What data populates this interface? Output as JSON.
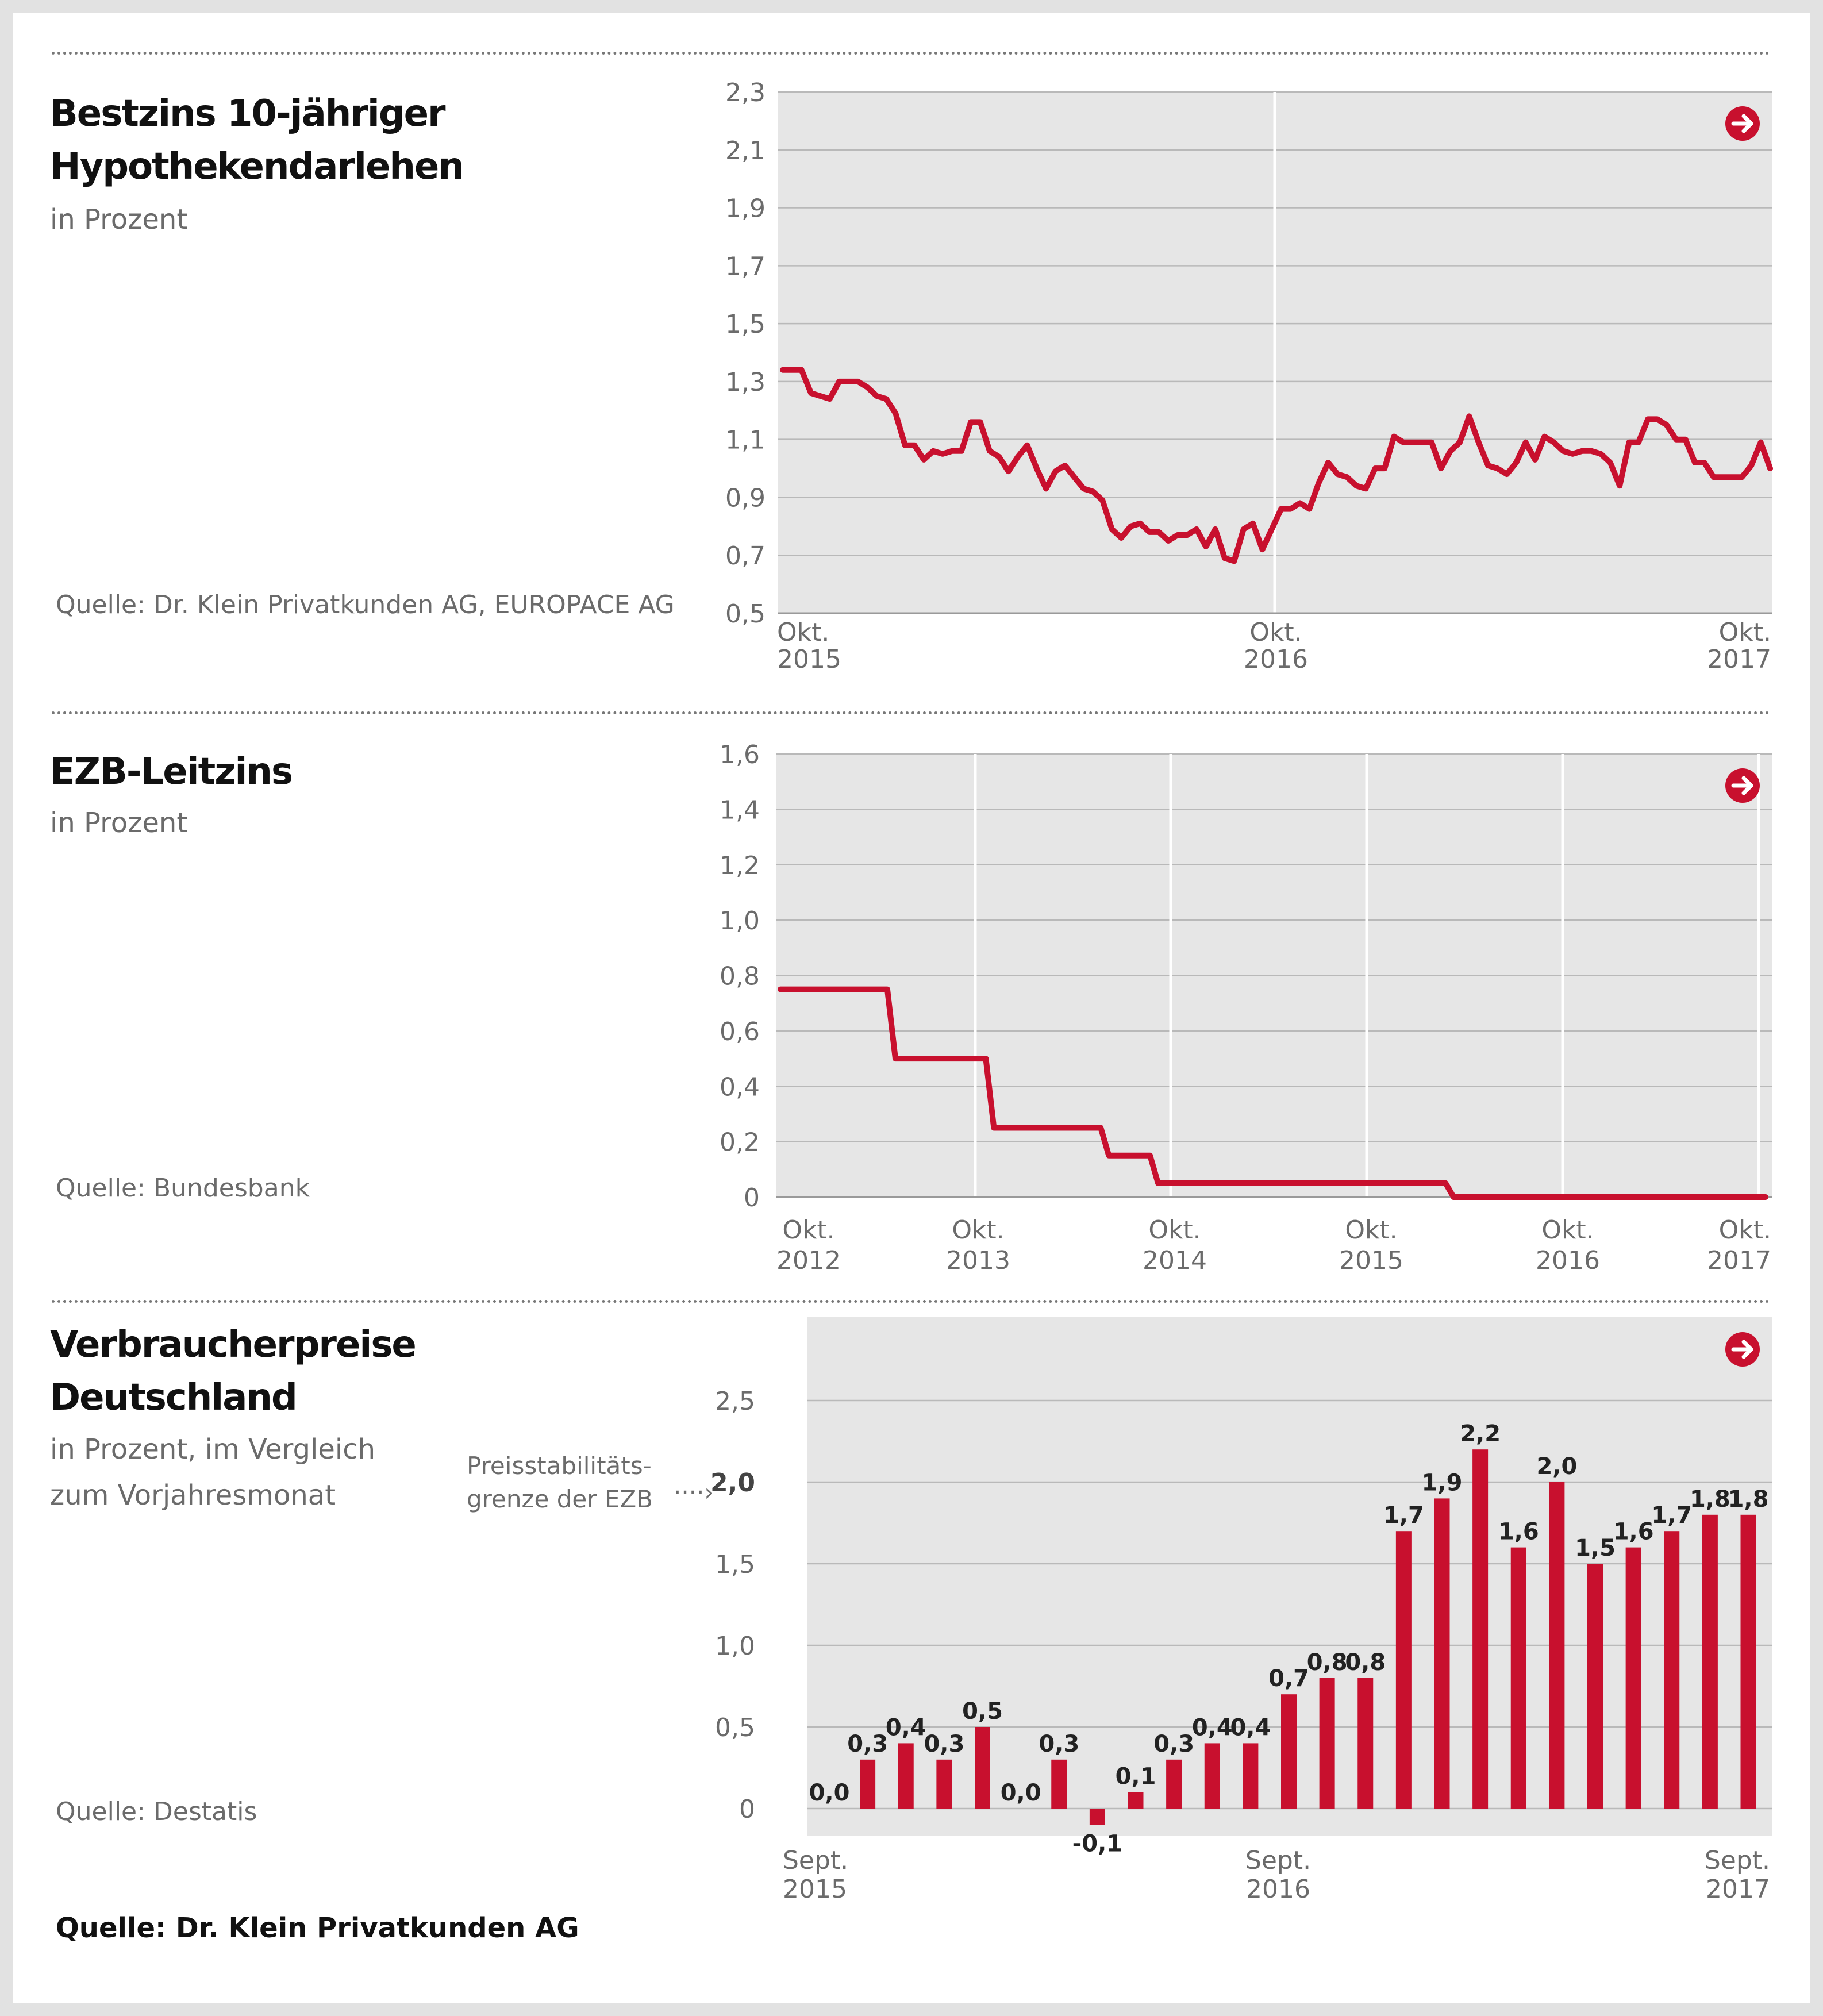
{
  "charts": [
    {
      "title_line1": "Bestzins 10-jähriger",
      "title_line2": "Hypothekendarlehen",
      "subtitle": "in Prozent",
      "source": "Quelle: Dr. Klein Privatkunden AG, EUROPACE AG",
      "chart_data": {
        "type": "line",
        "title": "Bestzins 10-jähriger Hypothekendarlehen",
        "subtitle": "in Prozent",
        "ylim": [
          0.5,
          2.3
        ],
        "yticks": [
          "2,3",
          "2,1",
          "1,9",
          "1,7",
          "1,5",
          "1,3",
          "1,1",
          "0,9",
          "0,7",
          "0,5"
        ],
        "ytick_values": [
          2.3,
          2.1,
          1.9,
          1.7,
          1.5,
          1.3,
          1.1,
          0.9,
          0.7,
          0.5
        ],
        "xticks": [
          {
            "top": "Okt.",
            "bottom": "2015"
          },
          {
            "top": "Okt.",
            "bottom": "2016"
          },
          {
            "top": "Okt.",
            "bottom": "2017"
          }
        ],
        "x_start": "2015-10",
        "x_end": "2017-10",
        "values": [
          1.34,
          1.34,
          1.34,
          1.26,
          1.25,
          1.24,
          1.3,
          1.3,
          1.3,
          1.28,
          1.25,
          1.24,
          1.19,
          1.08,
          1.08,
          1.03,
          1.06,
          1.05,
          1.06,
          1.06,
          1.16,
          1.16,
          1.06,
          1.04,
          0.99,
          1.04,
          1.08,
          1.0,
          0.93,
          0.99,
          1.01,
          0.97,
          0.93,
          0.92,
          0.89,
          0.79,
          0.76,
          0.8,
          0.81,
          0.78,
          0.78,
          0.75,
          0.77,
          0.77,
          0.79,
          0.73,
          0.79,
          0.69,
          0.68,
          0.79,
          0.81,
          0.72,
          0.79,
          0.86,
          0.86,
          0.88,
          0.86,
          0.95,
          1.02,
          0.98,
          0.97,
          0.94,
          0.93,
          1.0,
          1.0,
          1.11,
          1.09,
          1.09,
          1.09,
          1.09,
          1.0,
          1.06,
          1.09,
          1.18,
          1.09,
          1.01,
          1.0,
          0.98,
          1.02,
          1.09,
          1.03,
          1.11,
          1.09,
          1.06,
          1.05,
          1.06,
          1.06,
          1.05,
          1.02,
          0.94,
          1.09,
          1.09,
          1.17,
          1.17,
          1.15,
          1.1,
          1.1,
          1.02,
          1.02,
          0.97,
          0.97,
          0.97,
          0.97,
          1.01,
          1.09,
          1.0
        ],
        "color": "#c8102e"
      }
    },
    {
      "title_line1": "EZB-Leitzins",
      "subtitle": "in Prozent",
      "source": "Quelle: Bundesbank",
      "chart_data": {
        "type": "line",
        "title": "EZB-Leitzins",
        "subtitle": "in Prozent",
        "ylim": [
          0,
          1.6
        ],
        "yticks": [
          "1,6",
          "1,4",
          "1,2",
          "1,0",
          "0,8",
          "0,6",
          "0,4",
          "0,2",
          "0"
        ],
        "ytick_values": [
          1.6,
          1.4,
          1.2,
          1.0,
          0.8,
          0.6,
          0.4,
          0.2,
          0
        ],
        "xticks": [
          {
            "top": "Okt.",
            "bottom": "2012"
          },
          {
            "top": "Okt.",
            "bottom": "2013"
          },
          {
            "top": "Okt.",
            "bottom": "2014"
          },
          {
            "top": "Okt.",
            "bottom": "2015"
          },
          {
            "top": "Okt.",
            "bottom": "2016"
          },
          {
            "top": "Okt.",
            "bottom": "2017"
          }
        ],
        "x_start": "2012-10",
        "x_end": "2017-10",
        "steps": [
          {
            "date": "2012-10",
            "value": 0.75
          },
          {
            "date": "2013-05",
            "value": 0.5
          },
          {
            "date": "2013-11",
            "value": 0.25
          },
          {
            "date": "2014-06",
            "value": 0.15
          },
          {
            "date": "2014-09",
            "value": 0.05
          },
          {
            "date": "2016-03",
            "value": 0
          },
          {
            "date": "2017-10",
            "value": 0
          }
        ],
        "color": "#c8102e"
      }
    },
    {
      "title_line1": "Verbraucherpreise",
      "title_line2": "Deutschland",
      "subtitle_line1": "in Prozent, im Vergleich",
      "subtitle_line2": "zum Vorjahresmonat",
      "source": "Quelle: Destatis",
      "note_line1": "Preisstabilitäts-",
      "note_line2": "grenze der EZB",
      "note_arrow": "····›",
      "chart_data": {
        "type": "bar",
        "title": "Verbraucherpreise Deutschland",
        "subtitle": "in Prozent, im Vergleich zum Vorjahresmonat",
        "ylim": [
          -0.1,
          2.9
        ],
        "yticks": [
          "2,5",
          "2,0",
          "1,5",
          "1,0",
          "0,5",
          "0"
        ],
        "ytick_values": [
          2.5,
          2.0,
          1.5,
          1.0,
          0.5,
          0
        ],
        "bold_tick": "2,0",
        "xticks": [
          {
            "top": "Sept.",
            "bottom": "2015"
          },
          {
            "top": "Sept.",
            "bottom": "2016"
          },
          {
            "top": "Sept.",
            "bottom": "2017"
          }
        ],
        "categories": [
          "2015-09",
          "2015-10",
          "2015-11",
          "2015-12",
          "2016-01",
          "2016-02",
          "2016-03",
          "2016-04",
          "2016-05",
          "2016-06",
          "2016-07",
          "2016-08",
          "2016-09",
          "2016-10",
          "2016-11",
          "2016-12",
          "2017-01",
          "2017-02",
          "2017-03",
          "2017-04",
          "2017-05",
          "2017-06",
          "2017-07",
          "2017-08",
          "2017-09"
        ],
        "values": [
          0.0,
          0.3,
          0.4,
          0.3,
          0.5,
          0.0,
          0.3,
          -0.1,
          0.1,
          0.3,
          0.4,
          0.4,
          0.7,
          0.8,
          0.8,
          1.7,
          1.9,
          2.2,
          1.6,
          2.0,
          1.5,
          1.6,
          1.7,
          1.8,
          1.8
        ],
        "labels": [
          "0,0",
          "0,3",
          "0,4",
          "0,3",
          "0,5",
          "0,0",
          "0,3",
          "-0,1",
          "0,1",
          "0,3",
          "0,4",
          "0,4",
          "0,7",
          "0,8",
          "0,8",
          "1,7",
          "1,9",
          "2,2",
          "1,6",
          "2,0",
          "1,5",
          "1,6",
          "1,7",
          "1,8",
          "1,8"
        ],
        "color": "#c8102e"
      }
    }
  ],
  "footer_source": "Quelle: Dr. Klein Privatkunden AG",
  "colors": {
    "accent": "#c8102e",
    "plot_bg": "#e6e6e6",
    "grid": "#b9b9b9",
    "text_grey": "#6b6b6b"
  },
  "icons": [
    "arrow-right-circle-icon"
  ]
}
